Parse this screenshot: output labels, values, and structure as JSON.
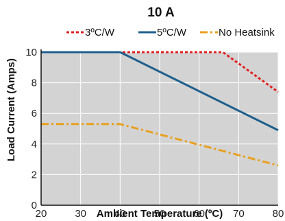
{
  "chart_data": {
    "type": "line",
    "title": "10 A",
    "xlabel": "Ambient Temperature (ºC)",
    "ylabel": "Load Current (Amps)",
    "xlim": [
      20,
      80
    ],
    "ylim": [
      0,
      10
    ],
    "x_ticks": [
      "20",
      "30",
      "40",
      "50",
      "60",
      "70",
      "80"
    ],
    "y_ticks": [
      "0",
      "2",
      "4",
      "6",
      "8",
      "10"
    ],
    "grid": true,
    "plot_background": "#d3d3d3",
    "legend_placement": "top",
    "series": [
      {
        "name": "3ºC/W",
        "color": "#e02020",
        "style": "dotted",
        "points": [
          [
            20,
            10
          ],
          [
            66,
            10
          ],
          [
            80,
            7.4
          ]
        ]
      },
      {
        "name": "5ºC/W",
        "color": "#1f5f8c",
        "style": "solid",
        "points": [
          [
            20,
            10
          ],
          [
            40,
            10
          ],
          [
            80,
            4.9
          ]
        ]
      },
      {
        "name": "No Heatsink",
        "color": "#e8a020",
        "style": "dashdot",
        "points": [
          [
            20,
            5.3
          ],
          [
            40,
            5.3
          ],
          [
            80,
            2.6
          ]
        ]
      }
    ]
  }
}
